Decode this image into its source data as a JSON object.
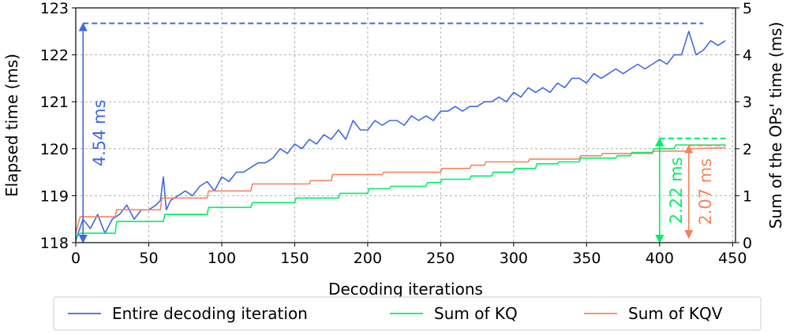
{
  "chart_data": {
    "type": "line",
    "xlabel": "Decoding iterations",
    "ylabel_left": "Elapsed time (ms)",
    "ylabel_right": "Sum of the OPs' time (ms)",
    "xlim": [
      0,
      452
    ],
    "ylim_left": [
      118,
      123
    ],
    "ylim_right": [
      0,
      5
    ],
    "x_ticks": [
      0,
      50,
      100,
      150,
      200,
      250,
      300,
      350,
      400,
      450
    ],
    "y_ticks_left": [
      118,
      119,
      120,
      121,
      122,
      123
    ],
    "y_ticks_right": [
      0,
      1,
      2,
      3,
      4,
      5
    ],
    "grid": true,
    "legend_position": "bottom",
    "series": [
      {
        "name": "Entire decoding iteration",
        "axis": "left",
        "color": "#4169e1",
        "x": [
          0,
          5,
          10,
          15,
          20,
          25,
          30,
          35,
          40,
          45,
          50,
          55,
          58,
          60,
          62,
          65,
          70,
          75,
          80,
          85,
          90,
          95,
          100,
          105,
          110,
          115,
          120,
          125,
          130,
          135,
          140,
          145,
          150,
          155,
          160,
          165,
          170,
          175,
          180,
          185,
          190,
          195,
          200,
          205,
          210,
          215,
          220,
          225,
          230,
          235,
          240,
          245,
          250,
          255,
          260,
          265,
          270,
          275,
          280,
          285,
          290,
          295,
          300,
          305,
          310,
          315,
          320,
          325,
          330,
          335,
          340,
          345,
          350,
          355,
          360,
          365,
          370,
          375,
          380,
          385,
          390,
          395,
          400,
          405,
          410,
          415,
          420,
          425,
          430,
          435,
          440,
          445
        ],
        "values": [
          118.05,
          118.5,
          118.3,
          118.6,
          118.2,
          118.5,
          118.6,
          118.8,
          118.5,
          118.7,
          118.7,
          118.8,
          118.9,
          119.4,
          118.7,
          118.9,
          119.0,
          119.1,
          119.0,
          119.2,
          119.3,
          119.1,
          119.4,
          119.3,
          119.5,
          119.5,
          119.6,
          119.7,
          119.7,
          119.8,
          120.0,
          119.9,
          120.1,
          120.0,
          120.2,
          120.1,
          120.3,
          120.2,
          120.4,
          120.2,
          120.6,
          120.4,
          120.4,
          120.6,
          120.5,
          120.6,
          120.6,
          120.5,
          120.7,
          120.6,
          120.7,
          120.6,
          120.8,
          120.8,
          120.9,
          120.8,
          120.9,
          120.9,
          121.0,
          121.0,
          121.1,
          121.0,
          121.2,
          121.1,
          121.3,
          121.2,
          121.3,
          121.2,
          121.4,
          121.3,
          121.5,
          121.5,
          121.4,
          121.6,
          121.5,
          121.6,
          121.7,
          121.6,
          121.7,
          121.8,
          121.7,
          121.8,
          121.9,
          121.8,
          122.0,
          122.0,
          122.5,
          122.0,
          122.1,
          122.3,
          122.2,
          122.3
        ]
      },
      {
        "name": "Sum of KQ",
        "axis": "right",
        "color": "#00ee66",
        "x": [
          0,
          3,
          27,
          28,
          60,
          61,
          90,
          91,
          120,
          121,
          150,
          151,
          180,
          181,
          200,
          201,
          215,
          216,
          240,
          241,
          250,
          251,
          270,
          271,
          285,
          286,
          300,
          301,
          315,
          316,
          330,
          331,
          345,
          346,
          370,
          371,
          380,
          381,
          395,
          396,
          410,
          411,
          445
        ],
        "values": [
          0.1,
          0.2,
          0.2,
          0.45,
          0.45,
          0.6,
          0.6,
          0.75,
          0.75,
          0.85,
          0.85,
          0.95,
          0.95,
          1.05,
          1.05,
          1.15,
          1.15,
          1.2,
          1.2,
          1.28,
          1.28,
          1.35,
          1.35,
          1.42,
          1.42,
          1.5,
          1.5,
          1.58,
          1.58,
          1.68,
          1.68,
          1.72,
          1.72,
          1.8,
          1.8,
          1.85,
          1.85,
          1.92,
          1.92,
          2.0,
          2.0,
          2.08,
          2.08
        ]
      },
      {
        "name": "Sum of KQV",
        "axis": "right",
        "color": "#f4845f",
        "x": [
          0,
          3,
          27,
          28,
          58,
          59,
          90,
          91,
          120,
          121,
          160,
          161,
          175,
          176,
          210,
          211,
          250,
          251,
          270,
          271,
          280,
          281,
          310,
          311,
          345,
          346,
          360,
          361,
          395,
          396,
          420,
          421,
          445
        ],
        "values": [
          0.2,
          0.55,
          0.55,
          0.7,
          0.7,
          0.95,
          0.95,
          1.1,
          1.1,
          1.25,
          1.25,
          1.32,
          1.32,
          1.45,
          1.45,
          1.5,
          1.5,
          1.58,
          1.58,
          1.65,
          1.65,
          1.72,
          1.72,
          1.78,
          1.78,
          1.85,
          1.85,
          1.9,
          1.9,
          1.95,
          1.95,
          2.0,
          2.02
        ]
      }
    ],
    "annotations": [
      {
        "text": "4.54 ms",
        "color": "#4169e1",
        "x": 5,
        "from": 118.0,
        "to": 122.67,
        "axis": "left",
        "ref_line_end_x": 430
      },
      {
        "text": "2.22 ms",
        "color": "#00ee66",
        "x": 400,
        "from": 0.0,
        "to": 2.22,
        "axis": "right",
        "ref_line_start_x": 400
      },
      {
        "text": "2.07 ms",
        "color": "#f4845f",
        "x": 420,
        "from": 0.1,
        "to": 2.07,
        "axis": "right",
        "ref_line_start_x": 420
      }
    ]
  }
}
